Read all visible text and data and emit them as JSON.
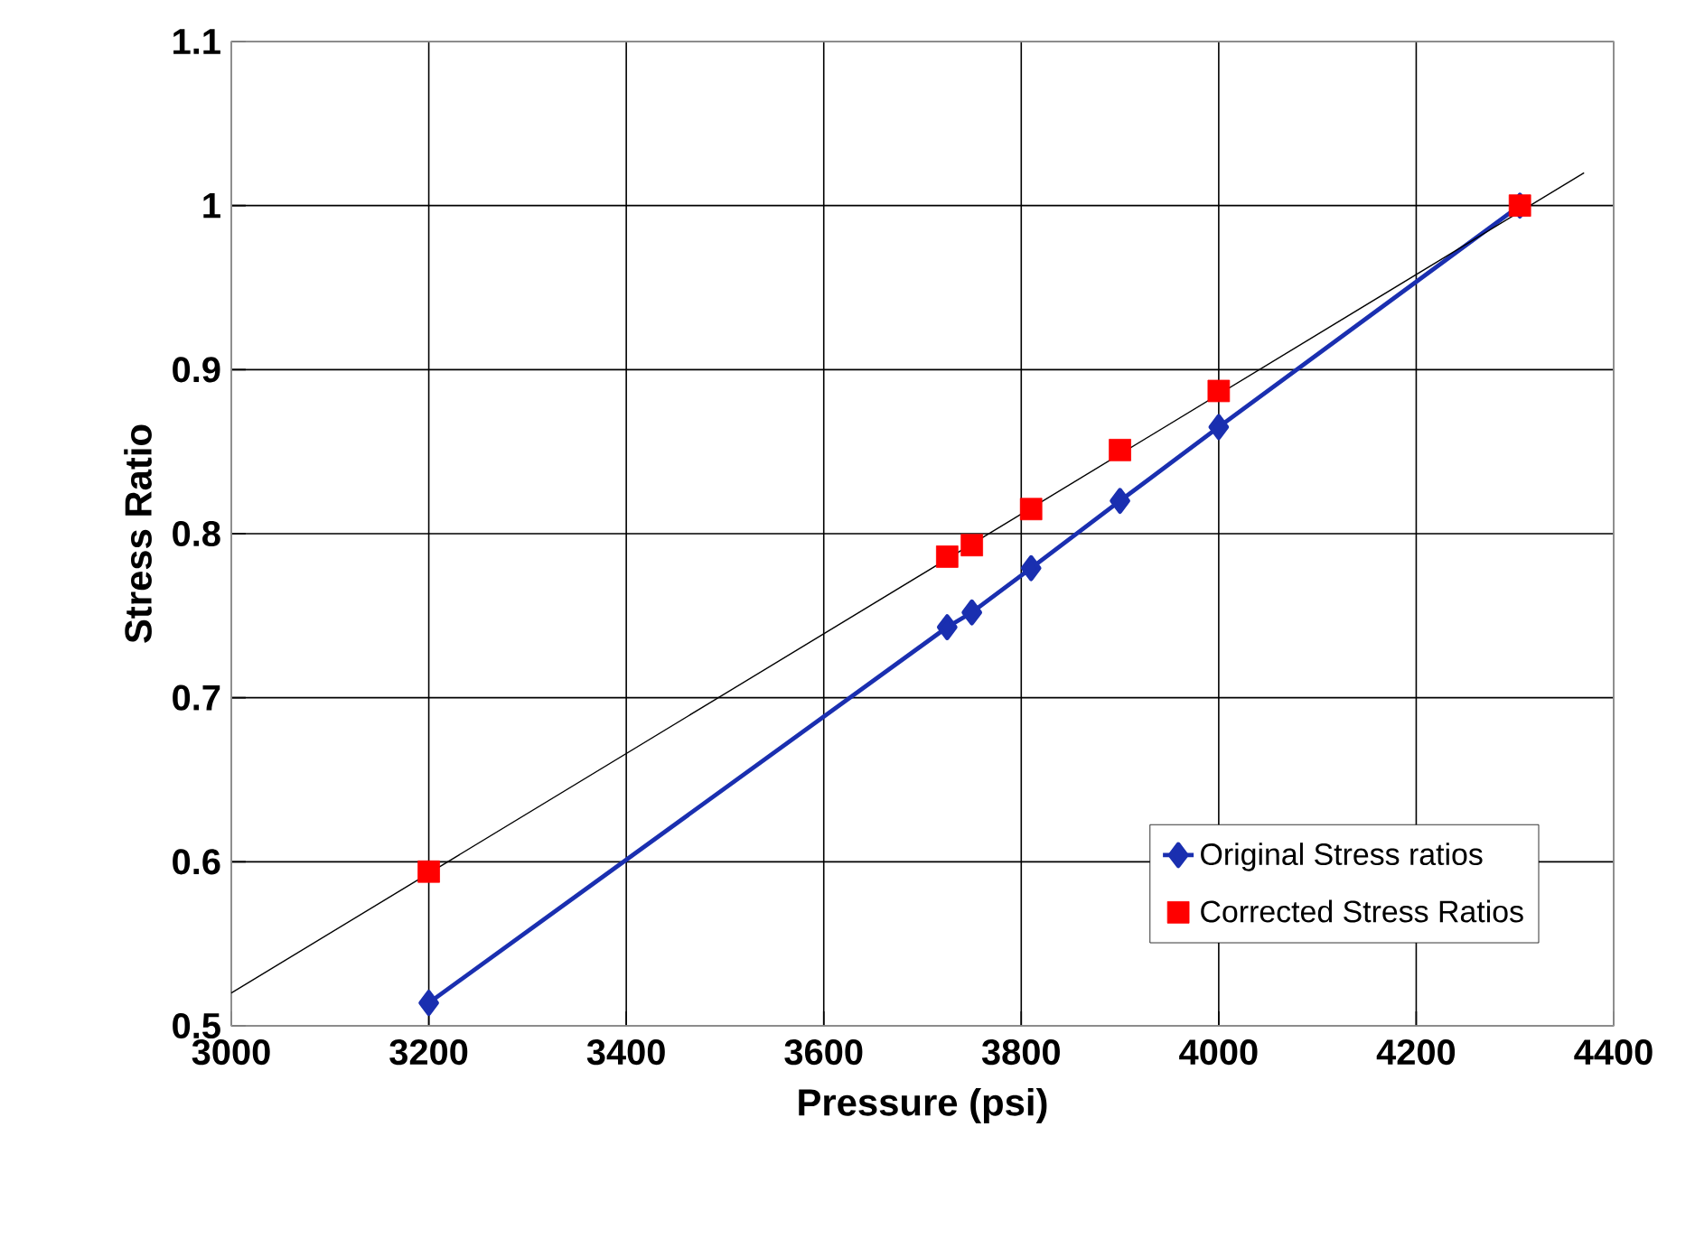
{
  "chart_data": {
    "type": "line",
    "xlabel": "Pressure (psi)",
    "ylabel": "Stress Ratio",
    "x": [
      3200,
      3725,
      3750,
      3810,
      3900,
      4000,
      4305
    ],
    "series": [
      {
        "name": "Original Stress ratios",
        "color": "#1a2fb0",
        "marker": "diamond",
        "values": [
          0.514,
          0.743,
          0.752,
          0.779,
          0.82,
          0.865,
          1.0
        ]
      },
      {
        "name": "Corrected Stress Ratios",
        "color": "#ff0000",
        "type": "scatter",
        "marker": "square",
        "values": [
          0.594,
          0.786,
          0.793,
          0.815,
          0.851,
          0.887,
          1.0
        ]
      },
      {
        "color": "#000000",
        "type": "line",
        "marker": "none",
        "x": [
          3000,
          4370
        ],
        "values": [
          0.52,
          1.02
        ]
      }
    ],
    "xlim": [
      3000,
      4400
    ],
    "xticks": [
      3000,
      3200,
      3400,
      3600,
      3800,
      4000,
      4200,
      4400
    ],
    "ylim": [
      0.5,
      1.1
    ],
    "yticks": [
      0.5,
      0.6,
      0.7,
      0.8,
      0.9,
      1,
      1.1
    ],
    "grid": true,
    "legend": "bottom right"
  }
}
